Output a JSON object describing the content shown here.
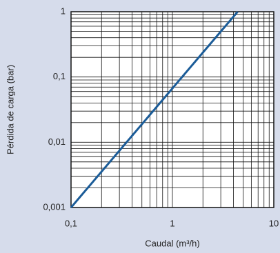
{
  "chart_data": {
    "type": "line",
    "x_label": "Caudal (m³/h)",
    "y_label": "Pérdida de carga (bar)",
    "log_x": true,
    "log_y": true,
    "grid": true,
    "minor_grid": true,
    "xlim": [
      0.1,
      10
    ],
    "ylim": [
      0.001,
      1
    ],
    "xticks": [
      {
        "value": 0.1,
        "label": "0,1"
      },
      1,
      10
    ],
    "yticks": [
      {
        "value": 0.001,
        "label": "0,001"
      },
      {
        "value": 0.01,
        "label": "0,01"
      },
      {
        "value": 0.1,
        "label": "0,1"
      },
      1
    ],
    "x": [
      0.1,
      4.4
    ],
    "series": [
      {
        "color": "#1b5c98",
        "values": [
          0.001,
          1
        ]
      }
    ]
  }
}
